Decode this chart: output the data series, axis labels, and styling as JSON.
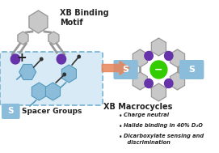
{
  "title_xb": "XB Binding\nMotif",
  "title_macrocycles": "XB Macrocycles",
  "bullet1": "Charge neutral",
  "bullet2": "Halide binding in 40% D₂O",
  "bullet3": "Dicarboxylate sensing and\n  discrimination",
  "spacer_label": "S",
  "spacer_text": "Spacer Groups",
  "bg_color": "#ffffff",
  "gray_light": "#c8c8c8",
  "gray_edge": "#999999",
  "blue_color": "#8bbddb",
  "blue_edge": "#5599bb",
  "blue_fill": "#d8eaf5",
  "purple_color": "#6633aa",
  "green_color": "#33cc00",
  "arrow_color": "#e8855a",
  "dash_color": "#7eb6d4",
  "text_color": "#222222",
  "white": "#ffffff"
}
